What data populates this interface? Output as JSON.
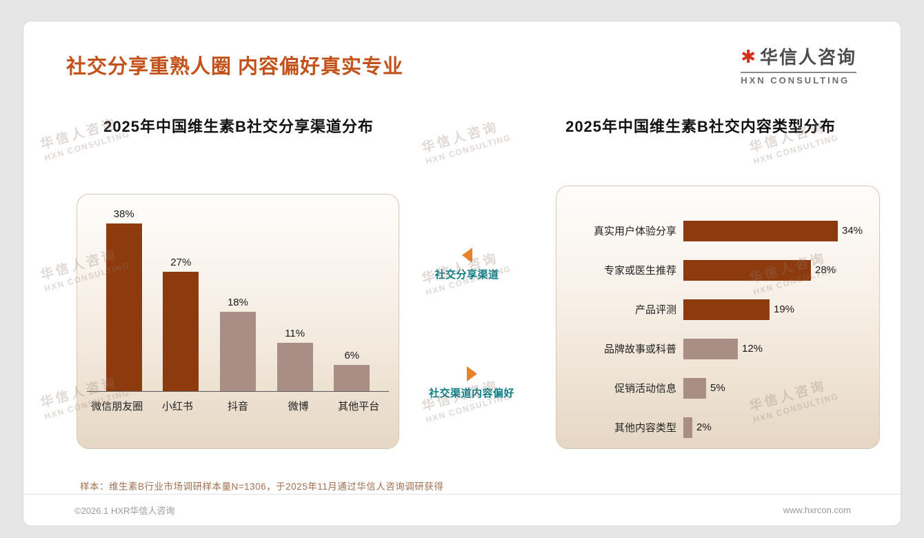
{
  "header": {
    "title": "社交分享重熟人圈 内容偏好真实专业",
    "logo": {
      "mark": "✱",
      "name": "华信人咨询",
      "sub": "HXN CONSULTING"
    }
  },
  "watermark": {
    "line1": "华信人咨询",
    "line2": "HXN CONSULTING"
  },
  "middle": {
    "top_label": "社交分享渠道",
    "bottom_label": "社交渠道内容偏好"
  },
  "footer": {
    "note": "样本：维生素B行业市场调研样本量N=1306，于2025年11月通过华信人咨询调研获得",
    "copyright": "©2026.1 HXR华信人咨询",
    "website": "www.hxrcon.com"
  },
  "colors": {
    "title_accent": "#c2511a",
    "bar_dark": "#8c3a0e",
    "bar_light": "#a98e85",
    "teal_label": "#0c7c86",
    "triangle_orange": "#e8822a"
  },
  "chart_data": [
    {
      "type": "bar",
      "orientation": "vertical",
      "title": "2025年中国维生素B社交分享渠道分布",
      "categories": [
        "微信朋友圈",
        "小红书",
        "抖音",
        "微博",
        "其他平台"
      ],
      "values": [
        38,
        27,
        18,
        11,
        6
      ],
      "unit": "%",
      "bar_colors": [
        "#8c3a0e",
        "#8c3a0e",
        "#a98e85",
        "#a98e85",
        "#a98e85"
      ],
      "ylim": [
        0,
        40
      ],
      "grid": false,
      "legend": "none"
    },
    {
      "type": "bar",
      "orientation": "horizontal",
      "title": "2025年中国维生素B社交内容类型分布",
      "categories": [
        "真实用户体验分享",
        "专家或医生推荐",
        "产品评测",
        "品牌故事或科普",
        "促销活动信息",
        "其他内容类型"
      ],
      "values": [
        34,
        28,
        19,
        12,
        5,
        2
      ],
      "unit": "%",
      "bar_colors": [
        "#8c3a0e",
        "#8c3a0e",
        "#8c3a0e",
        "#a98e85",
        "#a98e85",
        "#a98e85"
      ],
      "xlim": [
        0,
        36
      ],
      "grid": false,
      "legend": "none"
    }
  ]
}
